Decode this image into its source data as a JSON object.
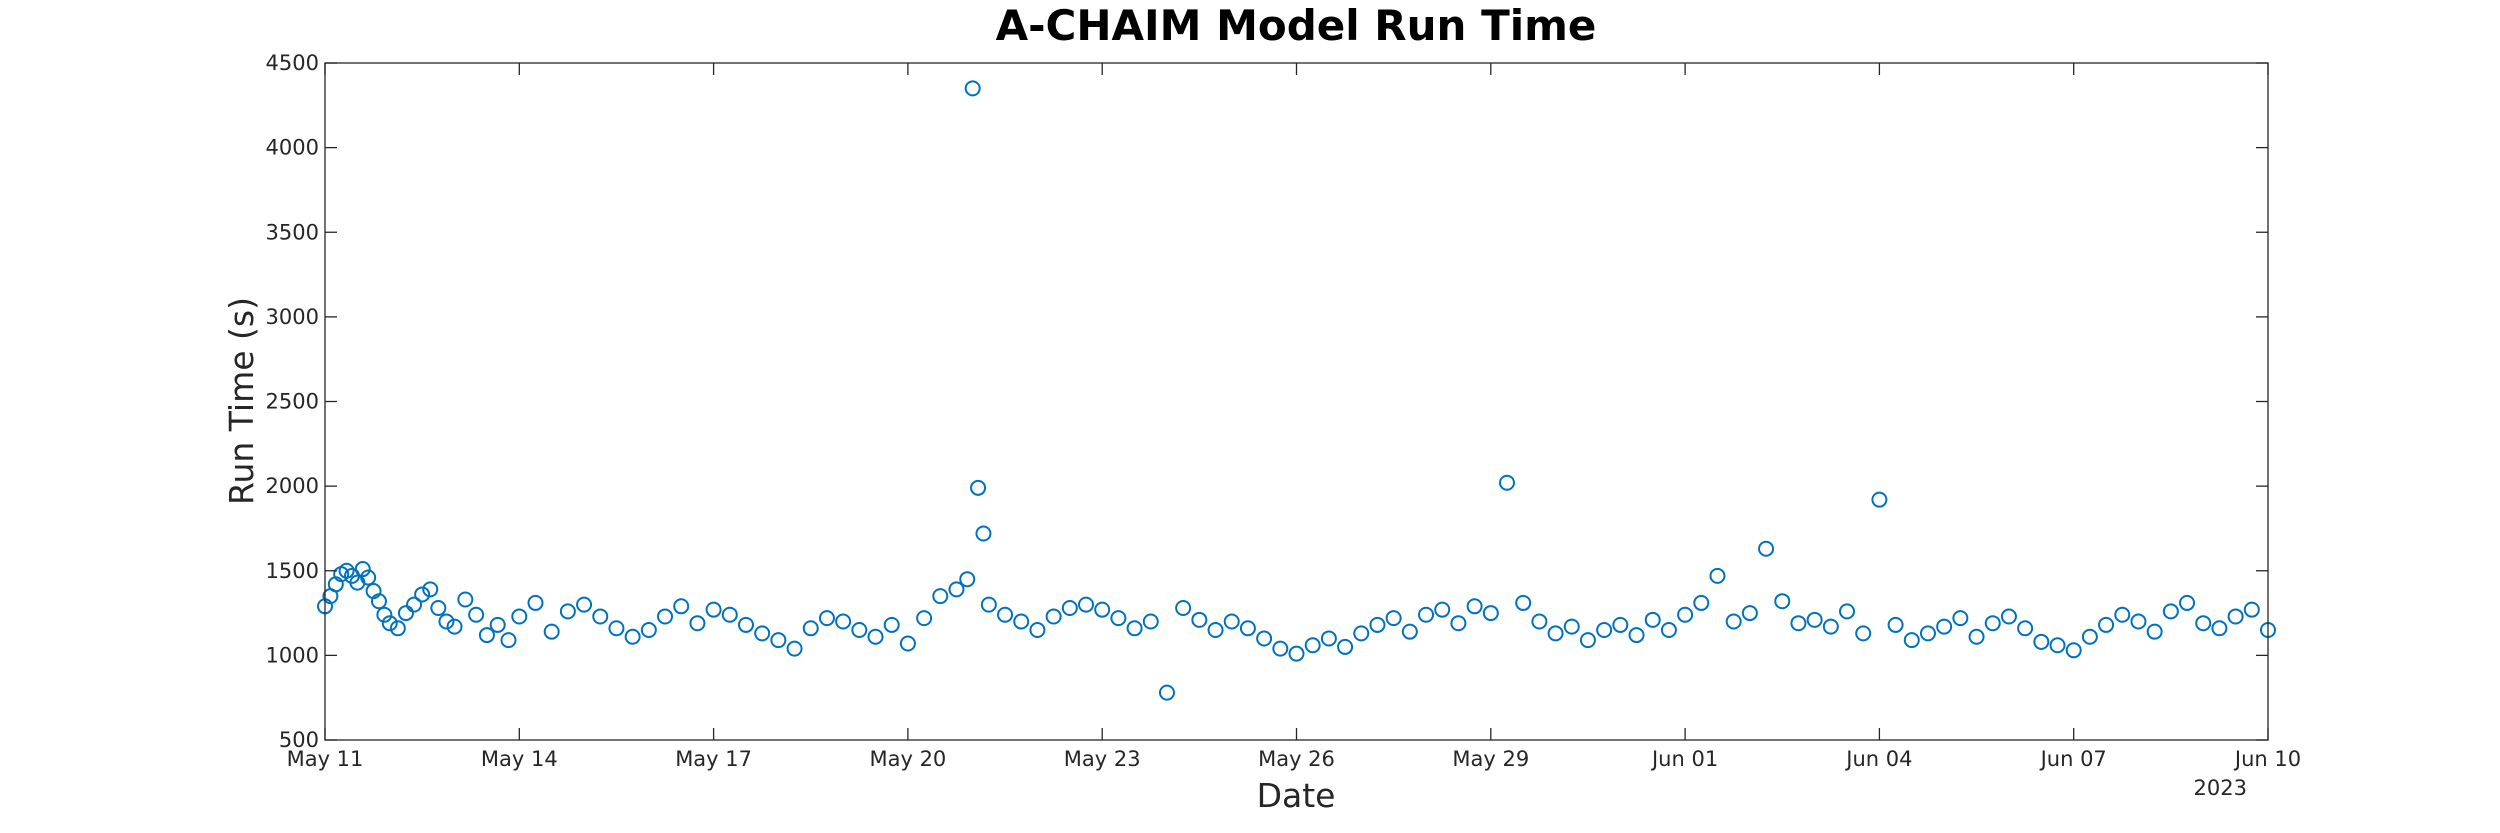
{
  "chart_data": {
    "type": "scatter",
    "title": "A-CHAIM Model Run Time",
    "xlabel": "Date",
    "ylabel": "Run Time (s)",
    "year_label": "2023",
    "xlim": [
      "2023-05-11",
      "2023-06-10"
    ],
    "ylim": [
      500,
      4500
    ],
    "x_ticks": [
      "2023-05-11",
      "2023-05-14",
      "2023-05-17",
      "2023-05-20",
      "2023-05-23",
      "2023-05-26",
      "2023-05-29",
      "2023-06-01",
      "2023-06-04",
      "2023-06-07",
      "2023-06-10"
    ],
    "x_tick_labels": [
      "May 11",
      "May 14",
      "May 17",
      "May 20",
      "May 23",
      "May 26",
      "May 29",
      "Jun 01",
      "Jun 04",
      "Jun 07",
      "Jun 10"
    ],
    "y_ticks": [
      500,
      1000,
      1500,
      2000,
      2500,
      3000,
      3500,
      4000,
      4500
    ],
    "y_tick_labels": [
      "500",
      "1000",
      "1500",
      "2000",
      "2500",
      "3000",
      "3500",
      "4000",
      "4500"
    ],
    "grid": false,
    "marker": "open-circle",
    "marker_color": "#0072BD",
    "axis_color": "#262626",
    "series": [
      {
        "x": [
          "2023-05-11 00:00",
          "2023-05-11 02:00",
          "2023-05-11 04:00",
          "2023-05-11 06:00",
          "2023-05-11 08:00",
          "2023-05-11 10:00",
          "2023-05-11 12:00",
          "2023-05-11 14:00",
          "2023-05-11 16:00",
          "2023-05-11 18:00",
          "2023-05-11 20:00",
          "2023-05-11 22:00",
          "2023-05-12 00:00",
          "2023-05-12 03:00",
          "2023-05-12 06:00",
          "2023-05-12 09:00",
          "2023-05-12 12:00",
          "2023-05-12 15:00",
          "2023-05-12 18:00",
          "2023-05-12 21:00",
          "2023-05-13 00:00",
          "2023-05-13 04:00",
          "2023-05-13 08:00",
          "2023-05-13 12:00",
          "2023-05-13 16:00",
          "2023-05-13 20:00",
          "2023-05-14 00:00",
          "2023-05-14 06:00",
          "2023-05-14 12:00",
          "2023-05-14 18:00",
          "2023-05-15 00:00",
          "2023-05-15 06:00",
          "2023-05-15 12:00",
          "2023-05-15 18:00",
          "2023-05-16 00:00",
          "2023-05-16 06:00",
          "2023-05-16 12:00",
          "2023-05-16 18:00",
          "2023-05-17 00:00",
          "2023-05-17 06:00",
          "2023-05-17 12:00",
          "2023-05-17 18:00",
          "2023-05-18 00:00",
          "2023-05-18 06:00",
          "2023-05-18 12:00",
          "2023-05-18 18:00",
          "2023-05-19 00:00",
          "2023-05-19 06:00",
          "2023-05-19 12:00",
          "2023-05-19 18:00",
          "2023-05-20 00:00",
          "2023-05-20 06:00",
          "2023-05-20 12:00",
          "2023-05-20 18:00",
          "2023-05-20 22:00",
          "2023-05-21 00:00",
          "2023-05-21 02:00",
          "2023-05-21 04:00",
          "2023-05-21 06:00",
          "2023-05-21 12:00",
          "2023-05-21 18:00",
          "2023-05-22 00:00",
          "2023-05-22 06:00",
          "2023-05-22 12:00",
          "2023-05-22 18:00",
          "2023-05-23 00:00",
          "2023-05-23 06:00",
          "2023-05-23 12:00",
          "2023-05-23 18:00",
          "2023-05-24 00:00",
          "2023-05-24 06:00",
          "2023-05-24 12:00",
          "2023-05-24 18:00",
          "2023-05-25 00:00",
          "2023-05-25 06:00",
          "2023-05-25 12:00",
          "2023-05-25 18:00",
          "2023-05-26 00:00",
          "2023-05-26 06:00",
          "2023-05-26 12:00",
          "2023-05-26 18:00",
          "2023-05-27 00:00",
          "2023-05-27 06:00",
          "2023-05-27 12:00",
          "2023-05-27 18:00",
          "2023-05-28 00:00",
          "2023-05-28 06:00",
          "2023-05-28 12:00",
          "2023-05-28 18:00",
          "2023-05-29 00:00",
          "2023-05-29 06:00",
          "2023-05-29 12:00",
          "2023-05-29 18:00",
          "2023-05-30 00:00",
          "2023-05-30 06:00",
          "2023-05-30 12:00",
          "2023-05-30 18:00",
          "2023-05-31 00:00",
          "2023-05-31 06:00",
          "2023-05-31 12:00",
          "2023-05-31 18:00",
          "2023-06-01 00:00",
          "2023-06-01 06:00",
          "2023-06-01 12:00",
          "2023-06-01 18:00",
          "2023-06-02 00:00",
          "2023-06-02 06:00",
          "2023-06-02 12:00",
          "2023-06-02 18:00",
          "2023-06-03 00:00",
          "2023-06-03 06:00",
          "2023-06-03 12:00",
          "2023-06-03 18:00",
          "2023-06-04 00:00",
          "2023-06-04 06:00",
          "2023-06-04 12:00",
          "2023-06-04 18:00",
          "2023-06-05 00:00",
          "2023-06-05 06:00",
          "2023-06-05 12:00",
          "2023-06-05 18:00",
          "2023-06-06 00:00",
          "2023-06-06 06:00",
          "2023-06-06 12:00",
          "2023-06-06 18:00",
          "2023-06-07 00:00",
          "2023-06-07 06:00",
          "2023-06-07 12:00",
          "2023-06-07 18:00",
          "2023-06-08 00:00",
          "2023-06-08 06:00",
          "2023-06-08 12:00",
          "2023-06-08 18:00",
          "2023-06-09 00:00",
          "2023-06-09 06:00",
          "2023-06-09 12:00",
          "2023-06-09 18:00",
          "2023-06-10 00:00"
        ],
        "y": [
          1290,
          1350,
          1420,
          1480,
          1500,
          1470,
          1430,
          1510,
          1460,
          1380,
          1320,
          1240,
          1190,
          1160,
          1250,
          1300,
          1360,
          1390,
          1280,
          1200,
          1170,
          1330,
          1240,
          1120,
          1180,
          1090,
          1230,
          1310,
          1140,
          1260,
          1300,
          1230,
          1160,
          1110,
          1150,
          1230,
          1290,
          1190,
          1270,
          1240,
          1180,
          1130,
          1090,
          1040,
          1160,
          1220,
          1200,
          1150,
          1110,
          1180,
          1070,
          1220,
          1350,
          1390,
          1450,
          4350,
          1990,
          1720,
          1300,
          1240,
          1200,
          1150,
          1230,
          1280,
          1300,
          1270,
          1220,
          1160,
          1200,
          780,
          1280,
          1210,
          1150,
          1200,
          1160,
          1100,
          1040,
          1010,
          1060,
          1100,
          1050,
          1130,
          1180,
          1220,
          1140,
          1240,
          1270,
          1190,
          1290,
          1250,
          2020,
          1310,
          1200,
          1130,
          1170,
          1090,
          1150,
          1180,
          1120,
          1210,
          1150,
          1240,
          1310,
          1470,
          1200,
          1250,
          1630,
          1320,
          1190,
          1210,
          1170,
          1260,
          1130,
          1920,
          1180,
          1090,
          1130,
          1170,
          1220,
          1110,
          1190,
          1230,
          1160,
          1080,
          1060,
          1030,
          1110,
          1180,
          1240,
          1200,
          1140,
          1260,
          1310,
          1190,
          1160,
          1230,
          1270,
          1150
        ]
      }
    ]
  }
}
